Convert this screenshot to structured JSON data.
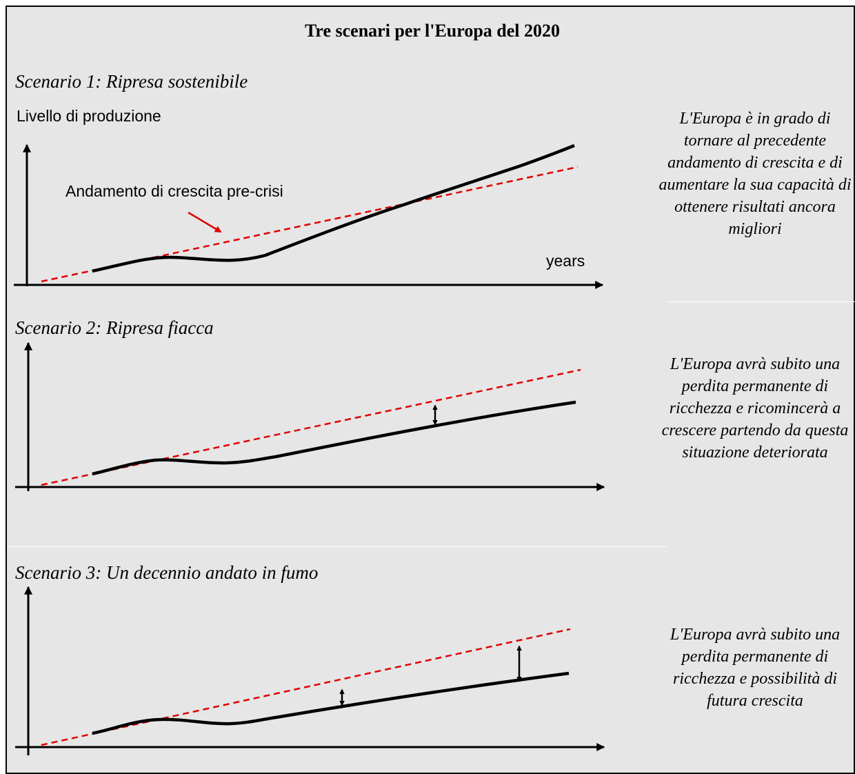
{
  "title": "Tre scenari per l'Europa del 2020",
  "y_axis_label": "Livello di produzione",
  "x_axis_label": "years",
  "trend_label": "Andamento di crescita pre-crisi",
  "colors": {
    "trend": "#e00000",
    "output": "#000000",
    "background": "#e6e6e6"
  },
  "scenarios": [
    {
      "title": "Scenario 1: Ripresa sostenibile",
      "description": "L'Europa è in grado di tornare al precedente andamento di crescita e di aumentare la sua capacità di ottenere risultati ancora migliori"
    },
    {
      "title": "Scenario 2: Ripresa fiacca",
      "description": "L'Europa avrà subito una perdita permanente di ricchezza e ricomincerà a crescere partendo da questa situazione deteriorata"
    },
    {
      "title": "Scenario 3: Un decennio andato in fumo",
      "description": "L'Europa avrà subito una perdita permanente di ricchezza e possibilità di futura crescita"
    }
  ]
}
